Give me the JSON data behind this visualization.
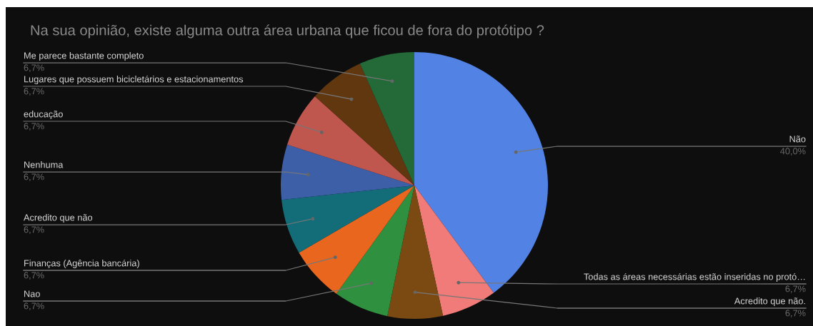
{
  "chart_data": {
    "type": "pie",
    "title": "Na sua opinião, existe alguma outra área urbana que ficou de fora do protótipo ?",
    "categories": [
      "Não",
      "Todas as áreas necessárias estão inseridas no protó…",
      "Acredito que não.",
      "Nao",
      "Finanças (Agência bancária)",
      "Acredito que não",
      "Nenhuma",
      "educação",
      "Lugares que possuem bicicletários e estacionamentos",
      "Me parece bastante completo"
    ],
    "values": [
      40.0,
      6.7,
      6.7,
      6.7,
      6.7,
      6.7,
      6.7,
      6.7,
      6.7,
      6.7
    ],
    "value_labels": [
      "40,0%",
      "6,7%",
      "6,7%",
      "6,7%",
      "6,7%",
      "6,7%",
      "6,7%",
      "6,7%",
      "6,7%",
      "6,7%"
    ],
    "colors": [
      "#5282e4",
      "#f07b78",
      "#7a4a12",
      "#2f9040",
      "#e8661e",
      "#136d78",
      "#3d5fa8",
      "#c0574f",
      "#613710",
      "#236a38"
    ],
    "legend": false
  }
}
